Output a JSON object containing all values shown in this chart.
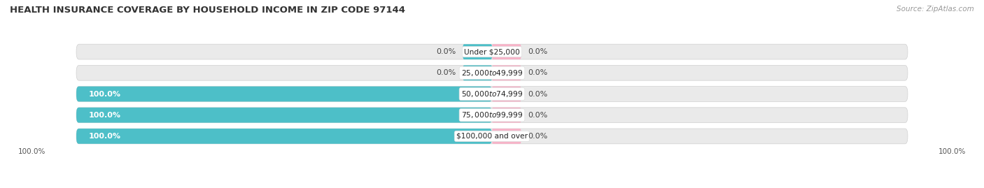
{
  "title": "HEALTH INSURANCE COVERAGE BY HOUSEHOLD INCOME IN ZIP CODE 97144",
  "source": "Source: ZipAtlas.com",
  "categories": [
    "Under $25,000",
    "$25,000 to $49,999",
    "$50,000 to $74,999",
    "$75,000 to $99,999",
    "$100,000 and over"
  ],
  "with_coverage": [
    0.0,
    0.0,
    100.0,
    100.0,
    100.0
  ],
  "without_coverage": [
    0.0,
    0.0,
    0.0,
    0.0,
    0.0
  ],
  "color_with": "#4DBFC8",
  "color_without": "#F7B3C8",
  "bar_bg_color": "#EAEAEA",
  "bg_fig": "#FFFFFF",
  "title_fontsize": 9.5,
  "label_fontsize": 8,
  "source_fontsize": 7.5,
  "legend_fontsize": 8.5,
  "bar_height": 0.72,
  "total_width": 100,
  "left_tick_label": "100.0%",
  "right_tick_label": "100.0%"
}
